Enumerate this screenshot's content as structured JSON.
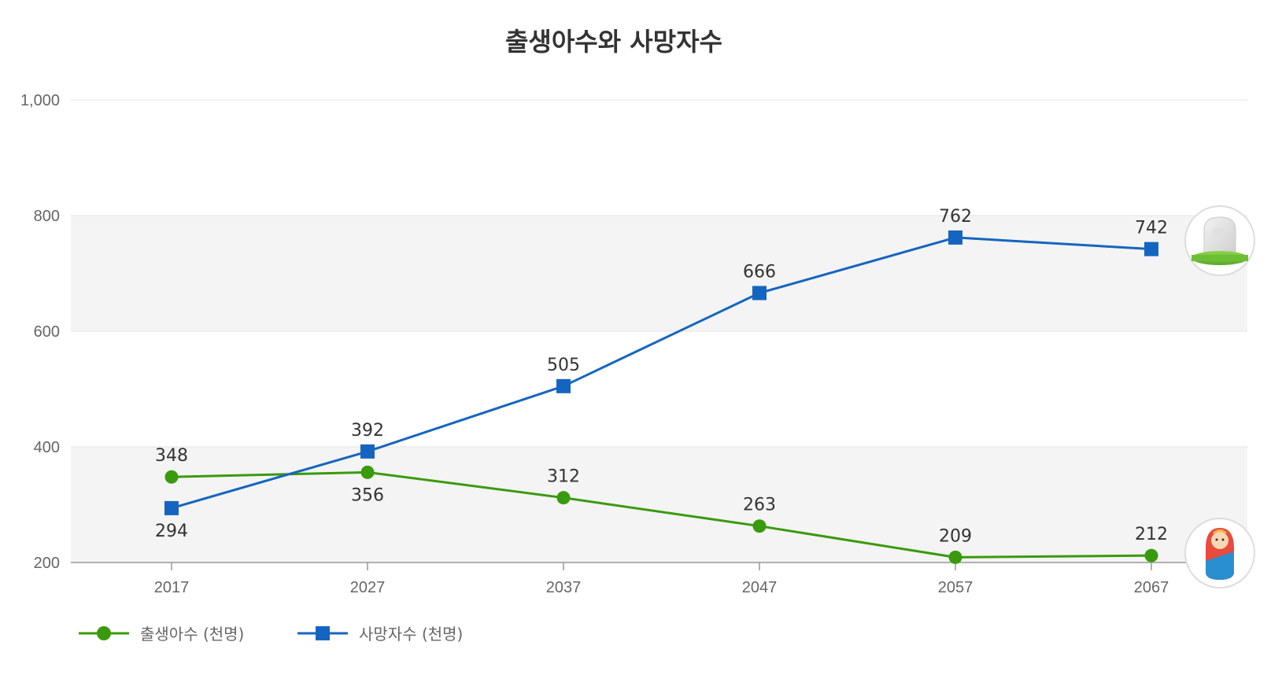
{
  "chart_data": {
    "type": "line",
    "title": "출생아수와 사망자수",
    "xlabel": "",
    "ylabel": "",
    "categories": [
      "2017",
      "2027",
      "2037",
      "2047",
      "2057",
      "2067"
    ],
    "ylim": [
      200,
      1000
    ],
    "yticks": [
      "200",
      "400",
      "600",
      "800",
      "1,000"
    ],
    "ytick_values": [
      200,
      400,
      600,
      800,
      1000
    ],
    "grid": true,
    "legend_position": "bottom-left",
    "series": [
      {
        "name": "출생아수 (천명)",
        "values": [
          348,
          356,
          312,
          263,
          209,
          212
        ],
        "labels": [
          "348",
          "356",
          "312",
          "263",
          "209",
          "212"
        ],
        "label_pos": [
          "above",
          "below",
          "above",
          "above",
          "above",
          "above"
        ],
        "color": "#3a9a0e",
        "marker": "circle",
        "end_icon": "baby-icon"
      },
      {
        "name": "사망자수 (천명)",
        "values": [
          294,
          392,
          505,
          666,
          762,
          742
        ],
        "labels": [
          "294",
          "392",
          "505",
          "666",
          "762",
          "742"
        ],
        "label_pos": [
          "below",
          "above",
          "above",
          "above",
          "above",
          "above"
        ],
        "color": "#1565c0",
        "marker": "square",
        "end_icon": "tombstone-icon"
      }
    ]
  }
}
